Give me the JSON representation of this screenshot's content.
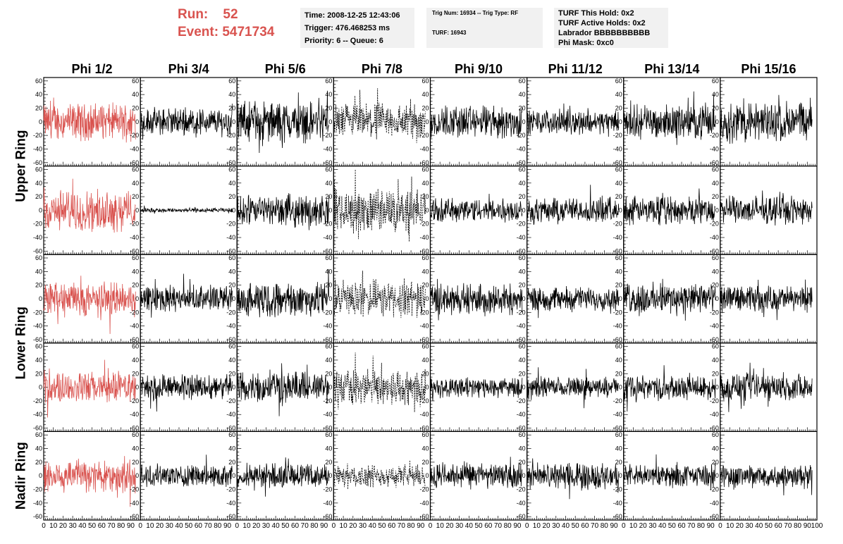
{
  "run_info": {
    "run_label": "Run:",
    "run_value": "52",
    "event_label": "Event:",
    "event_value": "5471734"
  },
  "time_box": {
    "time": "Time: 2008-12-25 12:43:06",
    "trigger": "Trigger: 476.468253 ms",
    "priority": "Priority: 6 -- Queue: 6"
  },
  "trig_box": {
    "line1": "Trig Num: 16934 -- Trig Type: RF",
    "line2": "TURF: 16943"
  },
  "turf_box": {
    "this_hold": "TURF This Hold: 0x2",
    "active_holds": "TURF Active Holds: 0x2",
    "labrador": "Labrador BBBBBBBBBB",
    "phi_mask": "Phi Mask: 0xc0"
  },
  "colors": {
    "highlight_trace": "#d9534f",
    "normal_trace": "#000000",
    "info_text": "#d9534f",
    "info_box_bg": "#f1f1f1"
  },
  "chart_data": {
    "type": "line",
    "columns": [
      "Phi 1/2",
      "Phi 3/4",
      "Phi 5/6",
      "Phi 7/8",
      "Phi 9/10",
      "Phi 11/12",
      "Phi 13/14",
      "Phi 15/16"
    ],
    "rows": [
      "Upper Ring",
      "Upper Ring",
      "Lower Ring",
      "Lower Ring",
      "Nadir Ring"
    ],
    "row_labels": [
      {
        "label": "Upper Ring",
        "spans_rows": [
          0,
          1
        ]
      },
      {
        "label": "Lower Ring",
        "spans_rows": [
          2,
          3
        ]
      },
      {
        "label": "Nadir Ring",
        "spans_rows": [
          4
        ]
      }
    ],
    "xlim": [
      0,
      100
    ],
    "ylim": [
      -65,
      65
    ],
    "x_ticks": [
      0,
      10,
      20,
      30,
      40,
      50,
      60,
      70,
      80,
      90,
      100
    ],
    "y_ticks": [
      -60,
      -40,
      -20,
      0,
      20,
      40,
      60
    ],
    "y_tick_labels": [
      "-60",
      "-40",
      "-20",
      "0",
      "20",
      "40",
      "60"
    ],
    "samples_x_range": [
      0,
      95
    ],
    "samples_per_trace": 260,
    "highlight_column": 0,
    "dashed_column": 3,
    "trace_amplitude": [
      [
        20,
        15,
        22,
        20,
        18,
        13,
        18,
        22
      ],
      [
        22,
        2.5,
        17,
        24,
        13,
        14,
        15,
        15
      ],
      [
        19,
        14,
        19,
        20,
        17,
        13,
        17,
        14
      ],
      [
        17,
        14,
        17,
        20,
        11,
        11,
        13,
        15
      ],
      [
        19,
        12,
        13,
        12,
        14,
        14,
        12,
        13
      ]
    ]
  }
}
